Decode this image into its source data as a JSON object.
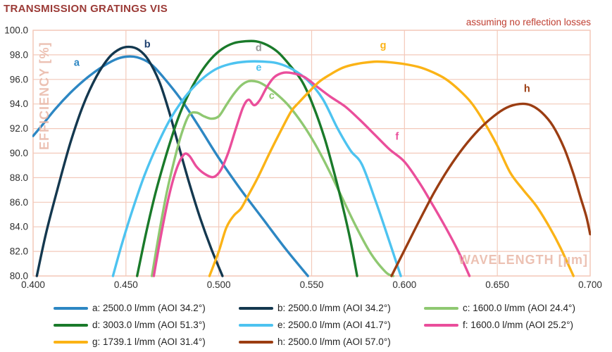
{
  "title": "TRANSMISSION GRATINGS VIS",
  "subtitle": "assuming no reflection losses",
  "colors": {
    "title": "#9b3a36",
    "subtitle": "#bf3d2f",
    "grid": "#f3c9ba",
    "watermark": "#e9b7a6",
    "tick_text": "#2e2e2e"
  },
  "chart_data": {
    "type": "line",
    "title": "TRANSMISSION GRATINGS VIS",
    "annotation": "assuming no reflection losses",
    "xlabel": "WAVELENGTH [µm]",
    "ylabel": "EFFICIENCY [%]",
    "xlim": [
      0.4,
      0.7
    ],
    "ylim": [
      80.0,
      100.0
    ],
    "x_ticks": [
      "0.400",
      "0.450",
      "0.500",
      "0.550",
      "0.600",
      "0.650",
      "0.700"
    ],
    "y_ticks": [
      "80.0",
      "82.0",
      "84.0",
      "86.0",
      "88.0",
      "90.0",
      "92.0",
      "94.0",
      "96.0",
      "98.0",
      "100.0"
    ],
    "grid": true,
    "legend_position": "bottom",
    "series": [
      {
        "id": "a",
        "legend": "a: 2500.0 l/mm (AOI 34.2°)",
        "color": "#2d87c3",
        "label": "a",
        "label_color": "#2d87c3",
        "label_x": 0.4235,
        "label_y": 97.1,
        "points": [
          [
            0.4,
            91.4
          ],
          [
            0.405,
            92.3
          ],
          [
            0.412,
            93.6
          ],
          [
            0.42,
            94.9
          ],
          [
            0.428,
            96.0
          ],
          [
            0.436,
            96.9
          ],
          [
            0.444,
            97.6
          ],
          [
            0.45,
            97.85
          ],
          [
            0.456,
            97.8
          ],
          [
            0.463,
            97.3
          ],
          [
            0.47,
            96.2
          ],
          [
            0.48,
            94.3
          ],
          [
            0.49,
            92.0
          ],
          [
            0.5,
            89.6
          ],
          [
            0.512,
            87.0
          ],
          [
            0.524,
            84.6
          ],
          [
            0.536,
            82.2
          ],
          [
            0.548,
            80.0
          ]
        ]
      },
      {
        "id": "b",
        "legend": "b: 2500.0 l/mm (AOI 34.2°)",
        "color": "#14384f",
        "label": "b",
        "label_color": "#1d3f6e",
        "label_x": 0.4615,
        "label_y": 98.6,
        "points": [
          [
            0.402,
            80.0
          ],
          [
            0.407,
            83.5
          ],
          [
            0.413,
            87.0
          ],
          [
            0.42,
            90.8
          ],
          [
            0.427,
            93.9
          ],
          [
            0.434,
            96.2
          ],
          [
            0.441,
            97.8
          ],
          [
            0.447,
            98.5
          ],
          [
            0.452,
            98.65
          ],
          [
            0.457,
            98.4
          ],
          [
            0.462,
            97.6
          ],
          [
            0.468,
            95.8
          ],
          [
            0.473,
            93.5
          ],
          [
            0.478,
            90.8
          ],
          [
            0.484,
            87.6
          ],
          [
            0.49,
            84.7
          ],
          [
            0.496,
            82.2
          ],
          [
            0.502,
            80.0
          ]
        ]
      },
      {
        "id": "c",
        "legend": "c: 1600.0 l/mm (AOI 24.4°)",
        "color": "#8fc871",
        "label": "c",
        "label_color": "#8fc871",
        "label_x": 0.5285,
        "label_y": 94.4,
        "points": [
          [
            0.464,
            80.0
          ],
          [
            0.468,
            83.6
          ],
          [
            0.472,
            86.8
          ],
          [
            0.476,
            89.4
          ],
          [
            0.48,
            91.6
          ],
          [
            0.484,
            93.1
          ],
          [
            0.488,
            93.3
          ],
          [
            0.492,
            93.0
          ],
          [
            0.496,
            92.8
          ],
          [
            0.5,
            93.0
          ],
          [
            0.504,
            93.9
          ],
          [
            0.508,
            94.8
          ],
          [
            0.512,
            95.5
          ],
          [
            0.516,
            95.85
          ],
          [
            0.521,
            95.8
          ],
          [
            0.526,
            95.4
          ],
          [
            0.532,
            94.7
          ],
          [
            0.538,
            93.8
          ],
          [
            0.545,
            92.4
          ],
          [
            0.552,
            90.7
          ],
          [
            0.559,
            88.7
          ],
          [
            0.566,
            86.5
          ],
          [
            0.574,
            84.0
          ],
          [
            0.582,
            81.8
          ],
          [
            0.59,
            80.3
          ],
          [
            0.594,
            80.0
          ]
        ]
      },
      {
        "id": "d",
        "legend": "d: 3003.0 l/mm (AOI 51.3°)",
        "color": "#1a7a2a",
        "label": "d",
        "label_color": "#9a9a9a",
        "label_x": 0.5215,
        "label_y": 98.3,
        "points": [
          [
            0.456,
            80.0
          ],
          [
            0.461,
            83.6
          ],
          [
            0.466,
            86.8
          ],
          [
            0.472,
            90.0
          ],
          [
            0.478,
            92.8
          ],
          [
            0.484,
            94.9
          ],
          [
            0.49,
            96.5
          ],
          [
            0.496,
            97.7
          ],
          [
            0.502,
            98.5
          ],
          [
            0.508,
            98.95
          ],
          [
            0.514,
            99.1
          ],
          [
            0.52,
            99.1
          ],
          [
            0.526,
            98.8
          ],
          [
            0.532,
            98.2
          ],
          [
            0.538,
            97.2
          ],
          [
            0.545,
            95.8
          ],
          [
            0.551,
            93.8
          ],
          [
            0.557,
            91.2
          ],
          [
            0.562,
            88.5
          ],
          [
            0.567,
            85.5
          ],
          [
            0.571,
            82.8
          ],
          [
            0.5745,
            80.0
          ]
        ]
      },
      {
        "id": "e",
        "legend": "e: 2500.0 l/mm (AOI 41.7°)",
        "color": "#4dc3f0",
        "label": "e",
        "label_color": "#4dc3f0",
        "label_x": 0.5215,
        "label_y": 96.7,
        "points": [
          [
            0.443,
            80.0
          ],
          [
            0.448,
            82.7
          ],
          [
            0.454,
            85.6
          ],
          [
            0.46,
            88.2
          ],
          [
            0.467,
            90.7
          ],
          [
            0.474,
            92.8
          ],
          [
            0.482,
            94.6
          ],
          [
            0.49,
            95.9
          ],
          [
            0.498,
            96.8
          ],
          [
            0.506,
            97.25
          ],
          [
            0.515,
            97.45
          ],
          [
            0.524,
            97.45
          ],
          [
            0.532,
            97.3
          ],
          [
            0.54,
            96.8
          ],
          [
            0.548,
            95.9
          ],
          [
            0.556,
            94.4
          ],
          [
            0.564,
            92.0
          ],
          [
            0.571,
            90.2
          ],
          [
            0.577,
            89.1
          ],
          [
            0.584,
            86.3
          ],
          [
            0.591,
            83.2
          ],
          [
            0.598,
            80.0
          ]
        ]
      },
      {
        "id": "f",
        "legend": "f: 1600.0 l/mm (AOI 25.2°)",
        "color": "#ea4e9b",
        "label": "f",
        "label_color": "#ea4e9b",
        "label_x": 0.596,
        "label_y": 91.1,
        "points": [
          [
            0.465,
            80.0
          ],
          [
            0.469,
            83.4
          ],
          [
            0.473,
            86.4
          ],
          [
            0.477,
            88.6
          ],
          [
            0.481,
            89.85
          ],
          [
            0.484,
            89.8
          ],
          [
            0.488,
            88.9
          ],
          [
            0.492,
            88.35
          ],
          [
            0.497,
            88.05
          ],
          [
            0.501,
            88.6
          ],
          [
            0.505,
            90.0
          ],
          [
            0.509,
            91.9
          ],
          [
            0.513,
            93.7
          ],
          [
            0.516,
            94.35
          ],
          [
            0.519,
            93.9
          ],
          [
            0.522,
            94.3
          ],
          [
            0.526,
            95.4
          ],
          [
            0.53,
            96.2
          ],
          [
            0.535,
            96.55
          ],
          [
            0.54,
            96.5
          ],
          [
            0.546,
            96.2
          ],
          [
            0.553,
            95.4
          ],
          [
            0.56,
            94.6
          ],
          [
            0.568,
            93.8
          ],
          [
            0.576,
            92.7
          ],
          [
            0.584,
            91.5
          ],
          [
            0.592,
            90.3
          ],
          [
            0.6,
            89.3
          ],
          [
            0.608,
            87.6
          ],
          [
            0.614,
            86.1
          ],
          [
            0.622,
            84.0
          ],
          [
            0.629,
            82.0
          ],
          [
            0.635,
            80.0
          ]
        ]
      },
      {
        "id": "g",
        "legend": "g: 1739.1 l/mm (AOI 31.4°)",
        "color": "#fbb316",
        "label": "g",
        "label_color": "#fbb316",
        "label_x": 0.5885,
        "label_y": 98.5,
        "points": [
          [
            0.495,
            80.0
          ],
          [
            0.5,
            82.0
          ],
          [
            0.504,
            83.9
          ],
          [
            0.508,
            84.9
          ],
          [
            0.512,
            85.5
          ],
          [
            0.516,
            86.6
          ],
          [
            0.521,
            88.0
          ],
          [
            0.527,
            89.9
          ],
          [
            0.533,
            91.7
          ],
          [
            0.539,
            93.4
          ],
          [
            0.543,
            94.1
          ],
          [
            0.548,
            94.9
          ],
          [
            0.554,
            95.8
          ],
          [
            0.56,
            96.4
          ],
          [
            0.566,
            96.9
          ],
          [
            0.571,
            97.15
          ],
          [
            0.578,
            97.35
          ],
          [
            0.585,
            97.45
          ],
          [
            0.592,
            97.4
          ],
          [
            0.6,
            97.25
          ],
          [
            0.608,
            97.0
          ],
          [
            0.615,
            96.6
          ],
          [
            0.622,
            96.05
          ],
          [
            0.629,
            95.2
          ],
          [
            0.636,
            94.1
          ],
          [
            0.643,
            92.5
          ],
          [
            0.65,
            90.6
          ],
          [
            0.657,
            88.4
          ],
          [
            0.664,
            87.0
          ],
          [
            0.671,
            85.7
          ],
          [
            0.678,
            84.0
          ],
          [
            0.684,
            82.3
          ],
          [
            0.691,
            80.0
          ]
        ]
      },
      {
        "id": "h",
        "legend": "h: 2500.0 l/mm (AOI 57.0°)",
        "color": "#9b3d12",
        "label": "h",
        "label_color": "#9b3d12",
        "label_x": 0.666,
        "label_y": 95.0,
        "points": [
          [
            0.593,
            80.0
          ],
          [
            0.6,
            82.1
          ],
          [
            0.608,
            84.5
          ],
          [
            0.616,
            86.8
          ],
          [
            0.624,
            88.8
          ],
          [
            0.632,
            90.5
          ],
          [
            0.64,
            91.9
          ],
          [
            0.648,
            93.0
          ],
          [
            0.655,
            93.7
          ],
          [
            0.662,
            94.0
          ],
          [
            0.668,
            93.9
          ],
          [
            0.674,
            93.3
          ],
          [
            0.68,
            92.2
          ],
          [
            0.686,
            90.4
          ],
          [
            0.691,
            88.3
          ],
          [
            0.695,
            86.3
          ],
          [
            0.698,
            84.8
          ],
          [
            0.7,
            83.4
          ]
        ]
      }
    ]
  }
}
